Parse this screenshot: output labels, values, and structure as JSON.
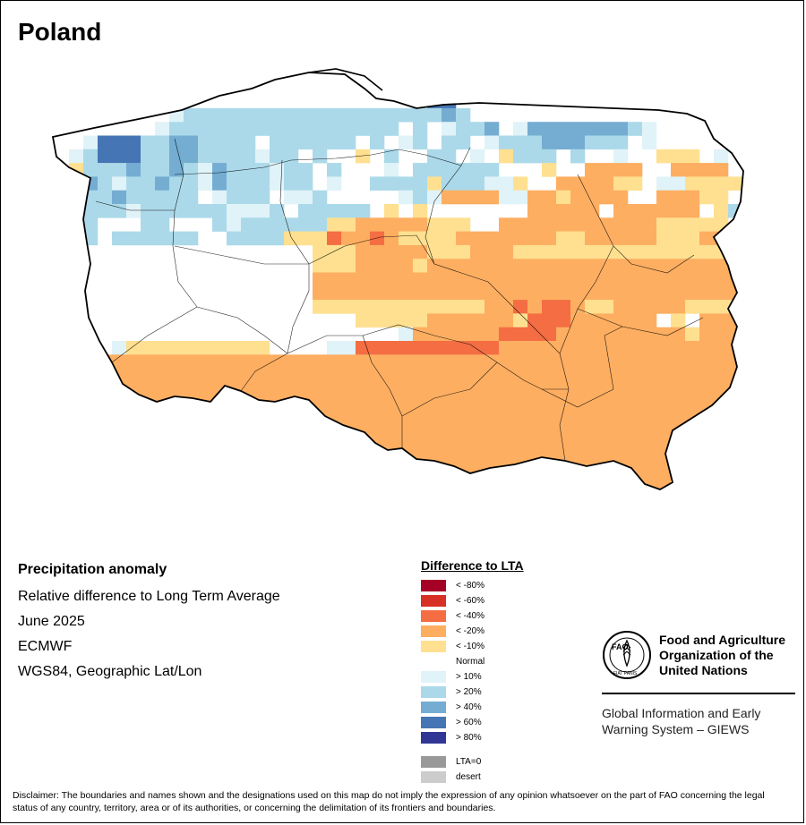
{
  "map_title": "Poland",
  "info": {
    "heading": "Precipitation anomaly",
    "lines": [
      "Relative difference to Long Term Average",
      "June 2025",
      "ECMWF",
      "WGS84, Geographic Lat/Lon"
    ]
  },
  "legend": {
    "title": "Difference to LTA",
    "classes": [
      {
        "label": "< -80%",
        "color": "#a50026"
      },
      {
        "label": "< -60%",
        "color": "#d73027"
      },
      {
        "label": "< -40%",
        "color": "#f46d43"
      },
      {
        "label": "< -20%",
        "color": "#fdae61"
      },
      {
        "label": "< -10%",
        "color": "#fee090"
      },
      {
        "label": "Normal",
        "color": "#ffffff"
      },
      {
        "label": "> 10%",
        "color": "#e0f3f8"
      },
      {
        "label": "> 20%",
        "color": "#abd9e9"
      },
      {
        "label": "> 40%",
        "color": "#74add1"
      },
      {
        "label": "> 60%",
        "color": "#4575b4"
      },
      {
        "label": "> 80%",
        "color": "#313695"
      }
    ],
    "extras": [
      {
        "label": "LTA=0",
        "color": "#999999"
      },
      {
        "label": "desert",
        "color": "#cccccc"
      }
    ]
  },
  "organization": {
    "logo_icon": "fao-logo",
    "logo_text": [
      "FAO",
      "FIAT PANIS"
    ],
    "name_lines": [
      "Food and Agriculture",
      "Organization of the",
      "United Nations"
    ],
    "program_lines": [
      "Global Information and Early",
      "Warning System – GIEWS"
    ]
  },
  "disclaimer": "Disclaimer: The boundaries and names shown and the designations used on this map do not imply the expression of any opinion whatsoever on the part of FAO concerning the legal status of any country, territory, area or of its authorities, or concerning the delimitation of its frontiers and boundaries.",
  "grid": {
    "codes": ".=normal, y=< -10%, o=< -20%, O=< -40%, R=< -60%, c=> 10%, l=> 20%, m=> 40%, d=> 60%",
    "rows": [
      "..................................................",
      "..................................................",
      "...........................dd.....................",
      ".........cllllllllllllllllllml....................",
      "........cllllllllllllllll.l.cllm.cmmmmmmmlc.......",
      "...cdddllmmllll.llllll.l.cl.ll.clllmmmlll.c.......",
      "..cldddllmmllllcll.l..y.l..ll.c.ylll.l..c..yyy.c..",
      "..ylllmllmlcmlllcll.l...c.llllll...y..oooo..oooo..",
      "..lmlcllmllcmlllcll.c..llllylllccy..ooooyy.ccyyyy.",
      "..lllmlllll.clll.ccl.....clcooooccooyoooo..oooyy..",
      ".lmlllcllllllcccl.lllll.y.y.......ooooo.oooooo.yl.",
      ".ccl...ll...lcllllllyyoooooyyy..oooooooooooyyyyy..",
      ".lml.llllll..llllyyyOooOoyyyyoooooooyyoooooyyyooo.",
      "...................yyyoooooyyyoooyyyyyyyyyyyyyyyyy",
      "...................yyyooooyooooooooooooooooooooooo",
      "...................ooooooooooooooooooooooooooooooo",
      "...................oooooooooooooooooooooooooooooo.",
      "...................yyyyyyyyyyyyooOoOOoyyoooooyyyyy",
      "......................yyyyyooooooyOOOoooooo.y.oooo",
      ".........................cooooooOOOOoooooooooyooo.",
      ".....cyyyyyyyyyy....ccOOOOOOOOOOooooooooooooooooo.",
      "..oooooooooooooooooooooooooooooooooooooooooooooooo",
      "..Oooooooooooooooooooooooooooooooooooooooooooooooo",
      "...ooooooooooooooooooooooooooooooooooooooooooooooo",
      ".ooooooooooooooooooooooooooooooooooooooooooooooooo",
      "..oooooooooooooooooooooooooooooooooooooooooooooooo",
      ".ooooooooooooooooooooooooooooooooooooooooooooooooo",
      "..ooooooooooooOOOOOOOOoooooooooooooooooooooooooooo",
      "....ooooooOOOOOOOOOOOOoooooooooooooooooooooooooo..",
      ".....oooooooooooOOOOOOOOooooooooooooooooooooooooo.",
      ".......ooooooooooooooooooooooooooooooooooooo......",
      "..........................oooooooooooooooooo......"
    ]
  }
}
